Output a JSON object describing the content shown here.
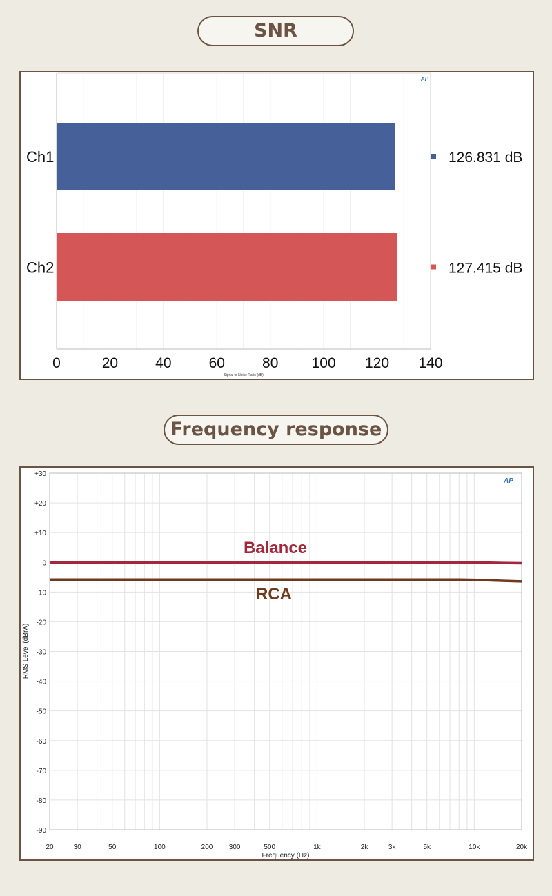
{
  "sections": {
    "snr_title": "SNR",
    "fr_title": "Frequency response"
  },
  "chart_data": [
    {
      "type": "bar",
      "orientation": "horizontal",
      "categories": [
        "Ch1",
        "Ch2"
      ],
      "values": [
        126.831,
        127.415
      ],
      "value_labels": [
        "126.831 dB",
        "127.415 dB"
      ],
      "colors": [
        "#46609a",
        "#d45656"
      ],
      "xlabel": "Signal to Noise Ratio (dB)",
      "xlim": [
        0,
        140
      ],
      "xticks": [
        0,
        20,
        40,
        60,
        80,
        100,
        120,
        140
      ],
      "grid": true,
      "logo": "AP"
    },
    {
      "type": "line",
      "xscale": "log",
      "xlim": [
        20,
        20000
      ],
      "ylim": [
        -90,
        30
      ],
      "xticks": [
        20,
        30,
        50,
        100,
        200,
        300,
        500,
        1000,
        2000,
        3000,
        5000,
        10000,
        20000
      ],
      "xtick_labels": [
        "20",
        "30",
        "50",
        "100",
        "200",
        "300",
        "500",
        "1k",
        "2k",
        "3k",
        "5k",
        "10k",
        "20k"
      ],
      "yticks": [
        30,
        20,
        10,
        0,
        -10,
        -20,
        -30,
        -40,
        -50,
        -60,
        -70,
        -80,
        -90
      ],
      "ytick_labels": [
        "+30",
        "+20",
        "+10",
        "0",
        "-10",
        "-20",
        "-30",
        "-40",
        "-50",
        "-60",
        "-70",
        "-80",
        "-90"
      ],
      "xlabel": "Frequency (Hz)",
      "ylabel": "RMS Level (dBrA)",
      "grid": true,
      "logo": "AP",
      "series": [
        {
          "name": "Balance",
          "color": "#a3283c",
          "x": [
            20,
            1000,
            8000,
            10000,
            15000,
            20000
          ],
          "y": [
            0,
            0,
            0,
            0,
            -0.2,
            -0.3
          ]
        },
        {
          "name": "RCA",
          "color": "#6e3a1e",
          "x": [
            20,
            1000,
            8000,
            10000,
            15000,
            20000
          ],
          "y": [
            -5.8,
            -5.8,
            -5.8,
            -5.9,
            -6.2,
            -6.4
          ]
        }
      ]
    }
  ]
}
